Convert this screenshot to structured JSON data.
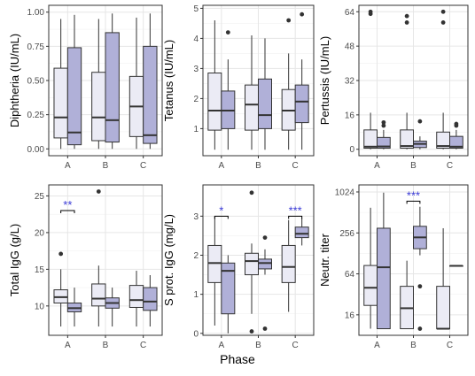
{
  "xlabel": "Phase",
  "colors": {
    "light": "#ebebf5",
    "dark": "#b0b0d8",
    "sig": "#3a3ad6",
    "border": "#333333",
    "grid": "#e6e6e6",
    "axis_text": "#4d4d4d"
  },
  "chart_data": [
    {
      "type": "box",
      "ylabel": "Diphtheria (IU/mL)",
      "scale": "linear",
      "ylim": [
        -0.05,
        1.05
      ],
      "yticks": [
        0.0,
        0.25,
        0.5,
        0.75,
        1.0
      ],
      "ytick_labels": [
        "0.00",
        "0.25",
        "0.50",
        "0.75",
        "1.00"
      ],
      "categories": [
        "A",
        "B",
        "C"
      ],
      "boxes": [
        {
          "category": "A",
          "group": "light",
          "min": 0.0,
          "q1": 0.08,
          "median": 0.23,
          "q3": 0.59,
          "max": 0.95,
          "outliers": []
        },
        {
          "category": "A",
          "group": "dark",
          "min": 0.0,
          "q1": 0.03,
          "median": 0.12,
          "q3": 0.74,
          "max": 0.98,
          "outliers": []
        },
        {
          "category": "B",
          "group": "light",
          "min": 0.0,
          "q1": 0.06,
          "median": 0.23,
          "q3": 0.56,
          "max": 0.95,
          "outliers": []
        },
        {
          "category": "B",
          "group": "dark",
          "min": 0.0,
          "q1": 0.05,
          "median": 0.21,
          "q3": 0.85,
          "max": 0.99,
          "outliers": []
        },
        {
          "category": "C",
          "group": "light",
          "min": 0.0,
          "q1": 0.09,
          "median": 0.31,
          "q3": 0.53,
          "max": 0.96,
          "outliers": []
        },
        {
          "category": "C",
          "group": "dark",
          "min": 0.0,
          "q1": 0.04,
          "median": 0.1,
          "q3": 0.75,
          "max": 0.99,
          "outliers": []
        }
      ],
      "significance": []
    },
    {
      "type": "box",
      "ylabel": "Tetanus (IU/mL)",
      "scale": "linear",
      "ylim": [
        0.1,
        5.1
      ],
      "yticks": [
        1,
        2,
        3,
        4,
        5
      ],
      "ytick_labels": [
        "1",
        "2",
        "3",
        "4",
        "5"
      ],
      "categories": [
        "A",
        "B",
        "C"
      ],
      "boxes": [
        {
          "category": "A",
          "group": "light",
          "min": 0.3,
          "q1": 0.95,
          "median": 1.6,
          "q3": 2.85,
          "max": 4.6,
          "outliers": []
        },
        {
          "category": "A",
          "group": "dark",
          "min": 0.3,
          "q1": 1.0,
          "median": 1.6,
          "q3": 2.25,
          "max": 3.3,
          "outliers": [
            4.2
          ]
        },
        {
          "category": "B",
          "group": "light",
          "min": 0.3,
          "q1": 0.95,
          "median": 1.8,
          "q3": 2.45,
          "max": 4.1,
          "outliers": []
        },
        {
          "category": "B",
          "group": "dark",
          "min": 0.3,
          "q1": 1.0,
          "median": 1.45,
          "q3": 2.65,
          "max": 4.0,
          "outliers": []
        },
        {
          "category": "C",
          "group": "light",
          "min": 0.3,
          "q1": 0.95,
          "median": 1.6,
          "q3": 2.3,
          "max": 3.5,
          "outliers": [
            4.6
          ]
        },
        {
          "category": "C",
          "group": "dark",
          "min": 0.3,
          "q1": 1.2,
          "median": 1.9,
          "q3": 2.45,
          "max": 3.3,
          "outliers": [
            4.8
          ]
        }
      ],
      "significance": []
    },
    {
      "type": "box",
      "ylabel": "Pertussis (IU/mL)",
      "scale": "linear",
      "ylim": [
        -3,
        67
      ],
      "yticks": [
        0,
        16,
        32,
        48,
        64
      ],
      "ytick_labels": [
        "0",
        "16",
        "32",
        "48",
        "64"
      ],
      "categories": [
        "A",
        "B",
        "C"
      ],
      "boxes": [
        {
          "category": "A",
          "group": "light",
          "min": 0,
          "q1": 0.5,
          "median": 1.2,
          "q3": 9,
          "max": 17,
          "outliers": [
            63,
            64
          ]
        },
        {
          "category": "A",
          "group": "dark",
          "min": 0,
          "q1": 0.5,
          "median": 1.3,
          "q3": 5.5,
          "max": 9,
          "outliers": [
            11,
            12.5
          ]
        },
        {
          "category": "B",
          "group": "light",
          "min": 0,
          "q1": 0.5,
          "median": 1.5,
          "q3": 9,
          "max": 17,
          "outliers": [
            59,
            62
          ]
        },
        {
          "category": "B",
          "group": "dark",
          "min": 0,
          "q1": 0.8,
          "median": 2.5,
          "q3": 3.8,
          "max": 6,
          "outliers": [
            13
          ]
        },
        {
          "category": "C",
          "group": "light",
          "min": 0,
          "q1": 0.5,
          "median": 1.5,
          "q3": 8,
          "max": 17,
          "outliers": [
            59,
            64
          ]
        },
        {
          "category": "C",
          "group": "dark",
          "min": 0,
          "q1": 0.5,
          "median": 1.2,
          "q3": 6,
          "max": 9,
          "outliers": [
            11,
            11.8
          ]
        }
      ],
      "significance": []
    },
    {
      "type": "box",
      "ylabel": "Total IgG (g/L)",
      "scale": "linear",
      "ylim": [
        6,
        26.5
      ],
      "yticks": [
        10,
        15,
        20,
        25
      ],
      "ytick_labels": [
        "10",
        "15",
        "20",
        "25"
      ],
      "categories": [
        "A",
        "B",
        "C"
      ],
      "boxes": [
        {
          "category": "A",
          "group": "light",
          "min": 7.2,
          "q1": 10.4,
          "median": 11.2,
          "q3": 12.2,
          "max": 15,
          "outliers": [
            17.1
          ]
        },
        {
          "category": "A",
          "group": "dark",
          "min": 7.2,
          "q1": 9.2,
          "median": 9.7,
          "q3": 10.4,
          "max": 12.5,
          "outliers": []
        },
        {
          "category": "B",
          "group": "light",
          "min": 7.2,
          "q1": 10,
          "median": 11,
          "q3": 13,
          "max": 15.5,
          "outliers": [
            25.6
          ]
        },
        {
          "category": "B",
          "group": "dark",
          "min": 7.2,
          "q1": 9.7,
          "median": 10.4,
          "q3": 11.1,
          "max": 12.5,
          "outliers": []
        },
        {
          "category": "C",
          "group": "light",
          "min": 7.2,
          "q1": 9.8,
          "median": 10.8,
          "q3": 12.8,
          "max": 14.8,
          "outliers": []
        },
        {
          "category": "C",
          "group": "dark",
          "min": 7.2,
          "q1": 9.4,
          "median": 10.6,
          "q3": 12.5,
          "max": 14.2,
          "outliers": []
        }
      ],
      "significance": [
        {
          "category": "A",
          "label": "**",
          "y": 23
        }
      ]
    },
    {
      "type": "box",
      "ylabel": "S prot. IgG (mg/L)",
      "scale": "linear",
      "ylim": [
        -0.05,
        3.8
      ],
      "yticks": [
        0,
        1,
        2,
        3
      ],
      "ytick_labels": [
        "0",
        "1",
        "2",
        "3"
      ],
      "categories": [
        "A",
        "B",
        "C"
      ],
      "boxes": [
        {
          "category": "A",
          "group": "light",
          "min": 0.2,
          "q1": 1.3,
          "median": 1.8,
          "q3": 2.25,
          "max": 3.0,
          "outliers": []
        },
        {
          "category": "A",
          "group": "dark",
          "min": 0,
          "q1": 0.5,
          "median": 1.6,
          "q3": 1.8,
          "max": 2.0,
          "outliers": []
        },
        {
          "category": "B",
          "group": "light",
          "min": 0.5,
          "q1": 1.5,
          "median": 1.85,
          "q3": 2.05,
          "max": 2.3,
          "outliers": [
            3.6,
            0.05
          ]
        },
        {
          "category": "B",
          "group": "dark",
          "min": 1.5,
          "q1": 1.65,
          "median": 1.8,
          "q3": 1.9,
          "max": 2.15,
          "outliers": [
            2.45,
            0.12
          ]
        },
        {
          "category": "C",
          "group": "light",
          "min": 0.55,
          "q1": 1.3,
          "median": 1.7,
          "q3": 2.25,
          "max": 2.9,
          "outliers": []
        },
        {
          "category": "C",
          "group": "dark",
          "min": 2.25,
          "q1": 2.45,
          "median": 2.55,
          "q3": 2.72,
          "max": 2.95,
          "outliers": []
        }
      ],
      "significance": [
        {
          "category": "A",
          "label": "*",
          "y": 3.0
        },
        {
          "category": "C",
          "label": "***",
          "y": 3.0
        }
      ]
    },
    {
      "type": "box",
      "ylabel": "Neutr. titer",
      "scale": "log2",
      "ylim": [
        8,
        1300
      ],
      "yticks": [
        16,
        64,
        256,
        1024
      ],
      "ytick_labels": [
        "16",
        "64",
        "256",
        "1024"
      ],
      "categories": [
        "A",
        "B",
        "C"
      ],
      "boxes": [
        {
          "category": "A",
          "group": "light",
          "min": 10,
          "q1": 22,
          "median": 40,
          "q3": 85,
          "max": 600,
          "outliers": []
        },
        {
          "category": "A",
          "group": "dark",
          "min": 10,
          "q1": 10,
          "median": 80,
          "q3": 300,
          "max": 1000,
          "outliers": []
        },
        {
          "category": "B",
          "group": "light",
          "min": 10,
          "q1": 10,
          "median": 20,
          "q3": 42,
          "max": 100,
          "outliers": []
        },
        {
          "category": "B",
          "group": "dark",
          "min": 120,
          "q1": 150,
          "median": 220,
          "q3": 320,
          "max": 620,
          "outliers": [
            42,
            10
          ]
        },
        {
          "category": "C",
          "group": "light",
          "min": 10,
          "q1": 10,
          "median": 10,
          "q3": 42,
          "max": 300,
          "outliers": []
        },
        {
          "category": "C",
          "group": "dark",
          "min": 84,
          "q1": 84,
          "median": 84,
          "q3": 84,
          "max": 84,
          "outliers": []
        }
      ],
      "significance": [
        {
          "category": "B",
          "label": "***",
          "y": 750
        }
      ]
    }
  ]
}
